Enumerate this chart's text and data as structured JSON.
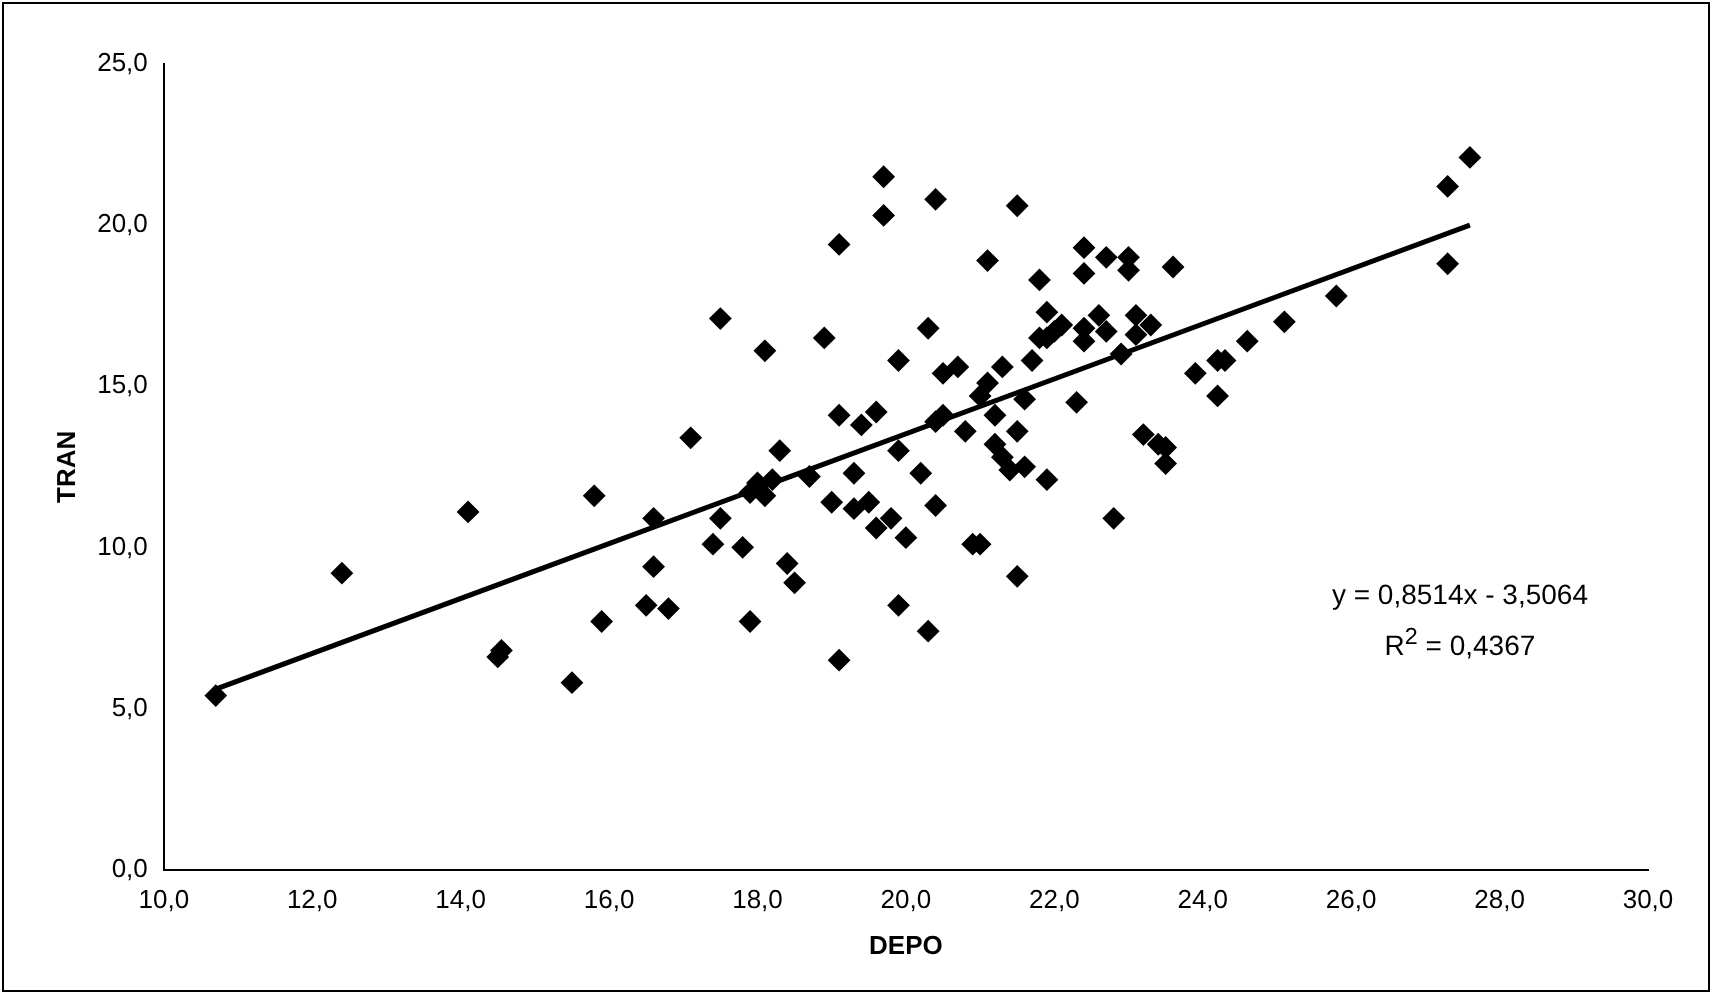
{
  "chart_data": {
    "type": "scatter",
    "xlabel": "DEPO",
    "ylabel": "TRAN",
    "xlim": [
      10,
      30
    ],
    "xticks": [
      {
        "value": 10,
        "label": "10,0"
      },
      {
        "value": 12,
        "label": "12,0"
      },
      {
        "value": 14,
        "label": "14,0"
      },
      {
        "value": 16,
        "label": "16,0"
      },
      {
        "value": 18,
        "label": "18,0"
      },
      {
        "value": 20,
        "label": "20,0"
      },
      {
        "value": 22,
        "label": "22,0"
      },
      {
        "value": 24,
        "label": "24,0"
      },
      {
        "value": 26,
        "label": "26,0"
      },
      {
        "value": 28,
        "label": "28,0"
      },
      {
        "value": 30,
        "label": "30,0"
      }
    ],
    "ylim": [
      0,
      25
    ],
    "yticks": [
      {
        "value": 0,
        "label": "0,0"
      },
      {
        "value": 5,
        "label": "5,0"
      },
      {
        "value": 10,
        "label": "10,0"
      },
      {
        "value": 15,
        "label": "15,0"
      },
      {
        "value": 20,
        "label": "20,0"
      },
      {
        "value": 25,
        "label": "25,0"
      }
    ],
    "grid": false,
    "legend": false,
    "marker": "diamond",
    "series": [
      {
        "type": "scatter",
        "color": "#000000",
        "x": [
          10.7,
          12.4,
          14.1,
          14.5,
          14.55,
          15.5,
          15.8,
          15.9,
          16.5,
          16.6,
          16.6,
          16.8,
          17.1,
          17.5,
          17.4,
          17.5,
          17.8,
          17.9,
          17.9,
          18.0,
          18.1,
          18.1,
          18.2,
          18.3,
          18.4,
          18.5,
          18.7,
          18.9,
          19.0,
          19.1,
          19.1,
          19.1,
          19.3,
          19.3,
          19.4,
          19.5,
          19.6,
          19.6,
          19.7,
          19.7,
          19.8,
          19.9,
          19.9,
          19.9,
          20.0,
          20.2,
          20.3,
          20.3,
          20.4,
          20.4,
          20.4,
          20.5,
          20.5,
          20.7,
          20.8,
          20.9,
          21.0,
          21.0,
          21.1,
          21.1,
          21.2,
          21.2,
          21.3,
          21.3,
          21.4,
          21.5,
          21.5,
          21.5,
          21.6,
          21.6,
          21.7,
          21.8,
          21.8,
          21.9,
          21.9,
          21.9,
          22.0,
          22.1,
          22.3,
          22.4,
          22.4,
          22.4,
          22.4,
          22.6,
          22.7,
          22.7,
          22.8,
          22.9,
          23.0,
          23.0,
          23.1,
          23.1,
          23.2,
          23.3,
          23.4,
          23.5,
          23.5,
          23.6,
          23.9,
          24.2,
          24.2,
          24.3,
          24.6,
          25.1,
          25.8,
          27.3,
          27.3,
          27.6
        ],
        "values": [
          5.4,
          9.2,
          11.1,
          6.6,
          6.8,
          5.8,
          11.6,
          7.7,
          8.2,
          10.9,
          9.4,
          8.1,
          13.4,
          17.1,
          10.1,
          10.9,
          10.0,
          7.7,
          11.7,
          12.0,
          16.1,
          11.6,
          12.1,
          13.0,
          9.5,
          8.9,
          12.2,
          16.5,
          11.4,
          19.4,
          14.1,
          6.5,
          11.2,
          12.3,
          13.8,
          11.4,
          14.2,
          10.6,
          21.5,
          20.3,
          10.9,
          8.2,
          13.0,
          15.8,
          10.3,
          12.3,
          7.4,
          16.8,
          13.9,
          11.3,
          20.8,
          14.1,
          15.4,
          15.6,
          13.6,
          10.1,
          10.1,
          14.7,
          18.9,
          15.1,
          13.2,
          14.1,
          15.6,
          12.8,
          12.4,
          9.1,
          13.6,
          20.6,
          14.6,
          12.5,
          15.8,
          18.3,
          16.5,
          12.1,
          16.5,
          17.3,
          16.7,
          16.9,
          14.5,
          16.4,
          16.8,
          18.5,
          19.3,
          17.2,
          19.0,
          16.7,
          10.9,
          16.0,
          19.0,
          18.6,
          16.6,
          17.2,
          13.5,
          16.9,
          13.2,
          12.6,
          13.1,
          18.7,
          15.4,
          15.8,
          14.7,
          15.8,
          16.4,
          17.0,
          17.8,
          18.8,
          21.2,
          22.1
        ]
      },
      {
        "type": "line",
        "color": "#000000",
        "marker": "none",
        "x": [
          10.7,
          27.6
        ],
        "values": [
          5.6,
          20.0
        ]
      }
    ],
    "annotations": [
      "y = 0,8514x - 3,5064",
      "R$^{2}$ = 0,4367"
    ]
  }
}
